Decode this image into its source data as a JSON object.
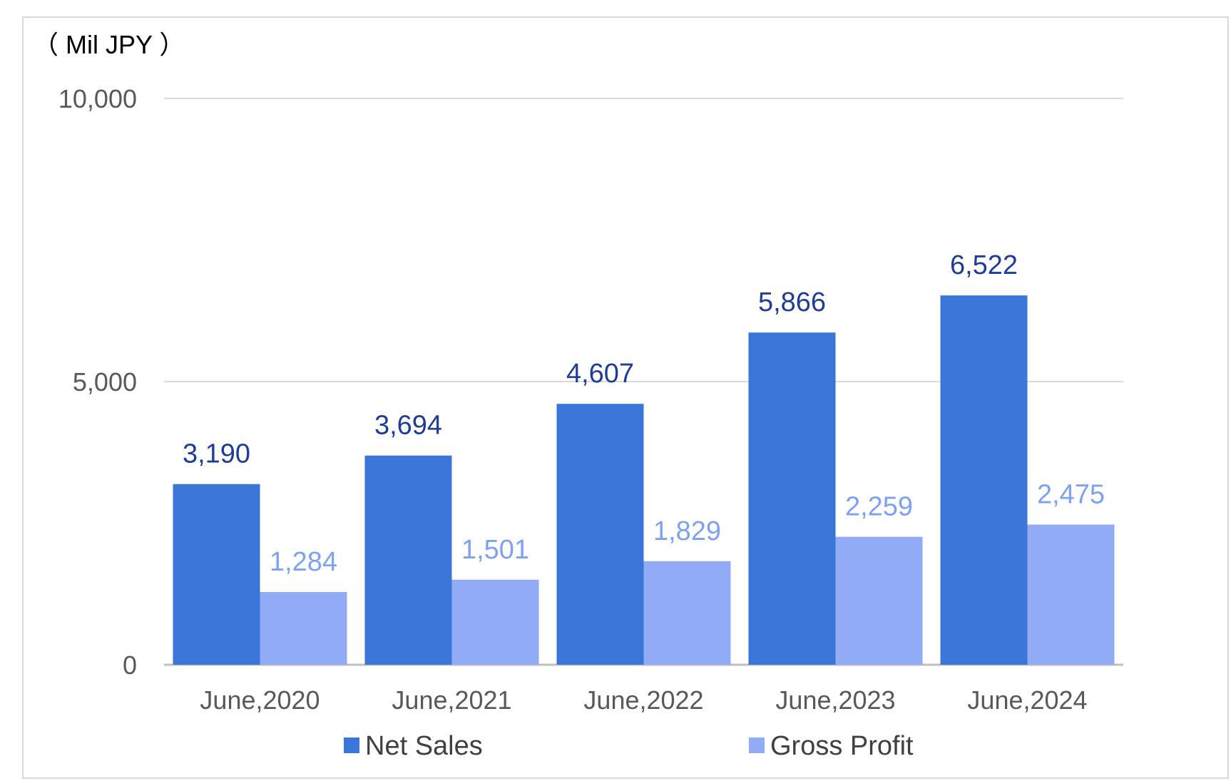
{
  "unit_label": "（ Mil JPY ）",
  "chart_data": {
    "type": "bar",
    "categories": [
      "June,2020",
      "June,2021",
      "June,2022",
      "June,2023",
      "June,2024"
    ],
    "series": [
      {
        "name": "Net Sales",
        "values": [
          3190,
          3694,
          4607,
          5866,
          6522
        ],
        "color": "#3a75d8",
        "label_color": "#1f3c96"
      },
      {
        "name": "Gross Profit",
        "values": [
          1284,
          1501,
          1829,
          2259,
          2475
        ],
        "color": "#92abf6",
        "label_color": "#7ea1f2"
      }
    ],
    "ylim": [
      0,
      10000
    ],
    "yticks": [
      0,
      5000,
      10000
    ],
    "ytick_labels": [
      "0",
      "5,000",
      "10,000"
    ],
    "grid": true,
    "legend_position": "bottom",
    "ylabel": "（ Mil JPY ）"
  }
}
